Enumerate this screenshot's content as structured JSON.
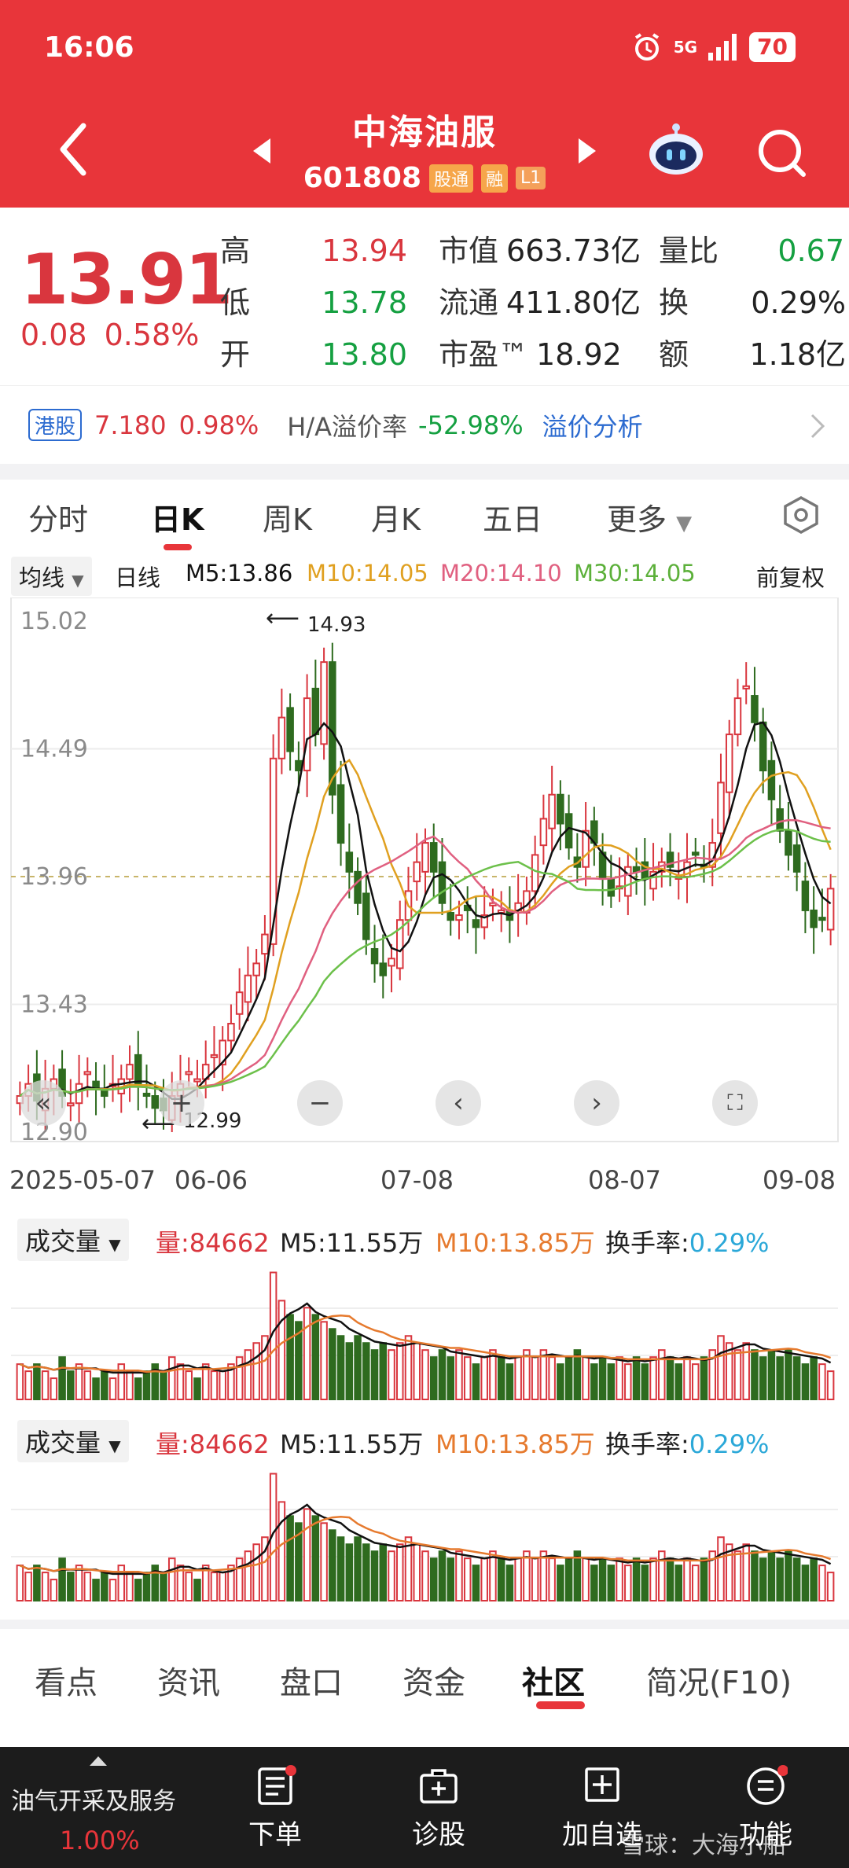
{
  "status": {
    "time": "16:06",
    "network": "5G",
    "battery": "70"
  },
  "header": {
    "name": "中海油服",
    "code": "601808",
    "tag_connect": "股通",
    "tag_margin": "融",
    "tag_level": "L1"
  },
  "quote": {
    "price": "13.91",
    "change": "0.08",
    "change_pct": "0.58%",
    "high_label": "高",
    "high": "13.94",
    "low_label": "低",
    "low": "13.78",
    "open_label": "开",
    "open": "13.80",
    "mcap_label": "市值",
    "mcap": "663.73亿",
    "float_label": "流通",
    "float": "411.80亿",
    "pe_label": "市盈™",
    "pe": "18.92",
    "vr_label": "量比",
    "vr": "0.67",
    "turn_label": "换",
    "turn": "0.29%",
    "amount_label": "额",
    "amount": "1.18亿"
  },
  "hk": {
    "badge": "港股",
    "price": "7.180",
    "pct": "0.98%",
    "premium_label": "H/A溢价率",
    "premium": "-52.98%",
    "analysis": "溢价分析"
  },
  "period_tabs": [
    "分时",
    "日K",
    "周K",
    "月K",
    "五日",
    "更多"
  ],
  "ma": {
    "selector": "均线",
    "line": "日线",
    "m5": "M5:13.86",
    "m10": "M10:14.05",
    "m20": "M20:14.10",
    "m30": "M30:14.05",
    "adjust": "前复权"
  },
  "chart": {
    "y_labels": [
      "15.02",
      "14.49",
      "13.96",
      "13.43",
      "12.90"
    ],
    "x_labels": [
      "2025-05-07",
      "06-06",
      "07-08",
      "08-07",
      "09-08"
    ],
    "max_note": "14.93",
    "min_note": "12.99"
  },
  "volume": {
    "selector": "成交量",
    "amount": "量:84662",
    "m5": "M5:11.55万",
    "m10": "M10:13.85万",
    "turnover_label": "换手率:",
    "turnover": "0.29%"
  },
  "bottom_tabs": [
    "看点",
    "资讯",
    "盘口",
    "资金",
    "社区",
    "简况(F10)"
  ],
  "dock": {
    "sector": "油气开采及服务",
    "sector_pct": "1.00%",
    "order": "下单",
    "diagnose": "诊股",
    "watch": "加自选",
    "func": "功能",
    "watermark": "雪球：大海小船"
  },
  "colors": {
    "up": "#d9363e",
    "down": "#2e6b1f",
    "ma5": "#111111",
    "ma10": "#e0a020",
    "ma20": "#e06080",
    "ma30": "#6cc04a",
    "header": "#e8353a"
  },
  "chart_data": {
    "type": "candlestick",
    "title": "",
    "ylim": [
      12.9,
      15.02
    ],
    "x_ticks": [
      "2025-05-07",
      "06-06",
      "07-08",
      "08-07",
      "09-08"
    ],
    "closes": [
      13.05,
      13.1,
      13.03,
      13.08,
      13.12,
      13.05,
      13.02,
      13.1,
      13.15,
      13.08,
      13.05,
      13.1,
      13.12,
      13.18,
      13.1,
      13.05,
      13.0,
      12.99,
      13.05,
      13.1,
      13.15,
      13.12,
      13.18,
      13.22,
      13.28,
      13.35,
      13.48,
      13.55,
      13.6,
      13.72,
      14.45,
      14.62,
      14.48,
      14.4,
      14.7,
      14.55,
      14.85,
      14.3,
      14.1,
      13.98,
      13.85,
      13.7,
      13.6,
      13.55,
      13.62,
      13.78,
      13.9,
      14.02,
      14.1,
      13.98,
      13.85,
      13.78,
      13.8,
      13.82,
      13.75,
      13.8,
      13.85,
      13.82,
      13.78,
      13.85,
      13.9,
      14.05,
      14.2,
      14.3,
      14.18,
      14.08,
      14.0,
      14.15,
      14.1,
      13.95,
      13.88,
      13.92,
      14.0,
      13.98,
      13.95,
      13.98,
      14.02,
      14.0,
      13.96,
      14.02,
      14.05,
      14.0,
      14.1,
      14.35,
      14.55,
      14.7,
      14.75,
      14.6,
      14.4,
      14.28,
      14.15,
      14.05,
      13.98,
      13.82,
      13.75,
      13.78,
      13.91
    ],
    "volume_series": [
      {
        "name": "量",
        "values": [
          5,
          4,
          5,
          4,
          3,
          6,
          4,
          5,
          4,
          3,
          4,
          3,
          5,
          4,
          3,
          4,
          5,
          4,
          6,
          5,
          4,
          3,
          5,
          4,
          4,
          5,
          6,
          7,
          8,
          9,
          18,
          14,
          12,
          11,
          13,
          12,
          11,
          10,
          9,
          8,
          9,
          8,
          7,
          8,
          7,
          8,
          9,
          8,
          7,
          6,
          7,
          6,
          7,
          6,
          5,
          6,
          7,
          6,
          5,
          6,
          7,
          6,
          7,
          6,
          5,
          6,
          7,
          6,
          5,
          6,
          5,
          6,
          5,
          6,
          5,
          6,
          7,
          6,
          5,
          6,
          5,
          6,
          7,
          9,
          8,
          7,
          8,
          7,
          6,
          7,
          6,
          7,
          6,
          5,
          6,
          5,
          4
        ]
      }
    ]
  }
}
